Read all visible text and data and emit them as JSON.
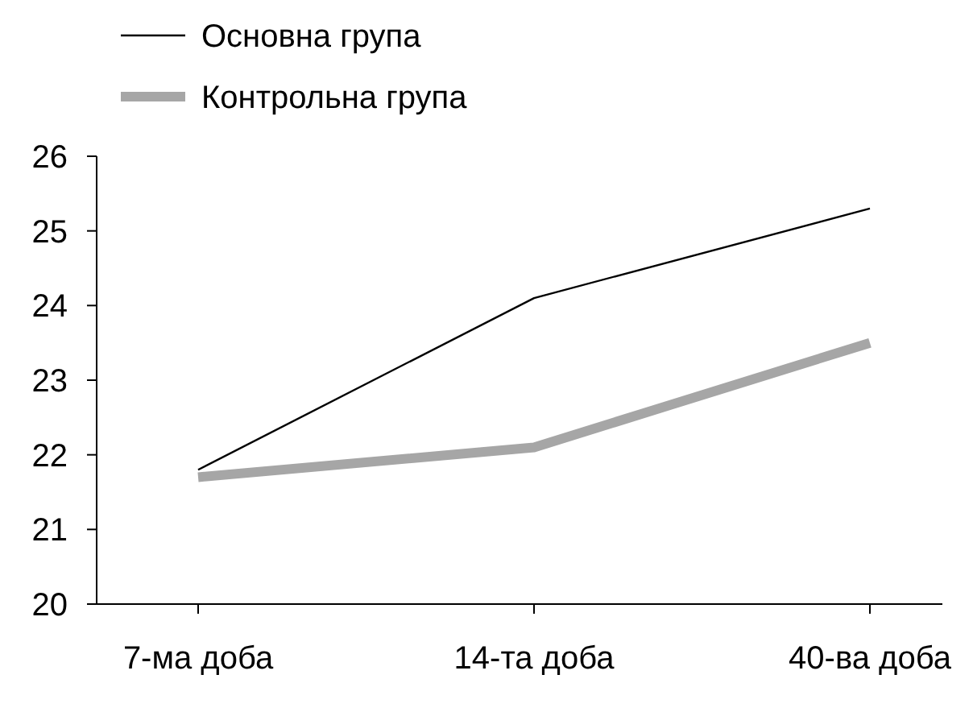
{
  "chart_data": {
    "type": "line",
    "categories": [
      "7-ма доба",
      "14-та доба",
      "40-ва доба"
    ],
    "series": [
      {
        "name": "Основна група",
        "color": "#000000",
        "values": [
          21.8,
          24.1,
          25.3
        ]
      },
      {
        "name": "Контрольна група",
        "color": "#a6a6a6",
        "values": [
          21.7,
          22.1,
          23.5
        ]
      }
    ],
    "ylim": [
      20,
      26
    ],
    "yticks": [
      20,
      21,
      22,
      23,
      24,
      25,
      26
    ],
    "grid": false,
    "legend": "top left",
    "marker": "none",
    "line_style": "solid"
  }
}
